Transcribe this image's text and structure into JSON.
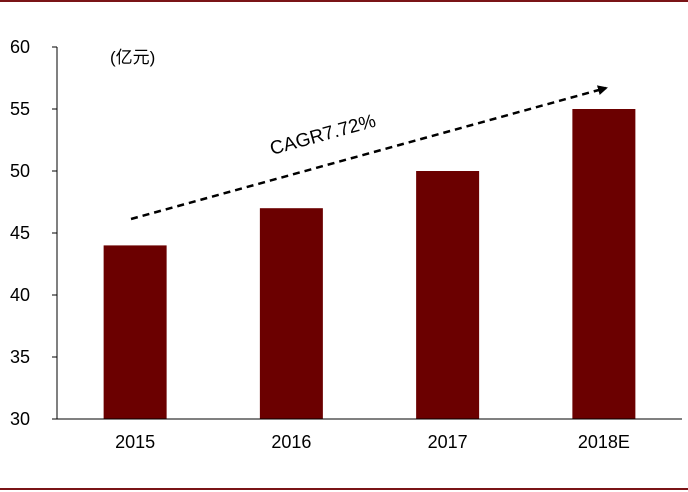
{
  "chart_data": {
    "type": "bar",
    "categories": [
      "2015",
      "2016",
      "2017",
      "2018E"
    ],
    "values": [
      44,
      47,
      50,
      55
    ],
    "ylim": [
      30,
      60
    ],
    "yticks": [
      30,
      35,
      40,
      45,
      50,
      55,
      60
    ],
    "unit_label": "(亿元)",
    "annotation": "CAGR7.72%",
    "bar_color": "#6b0000",
    "frame_color": "#7a1416"
  }
}
